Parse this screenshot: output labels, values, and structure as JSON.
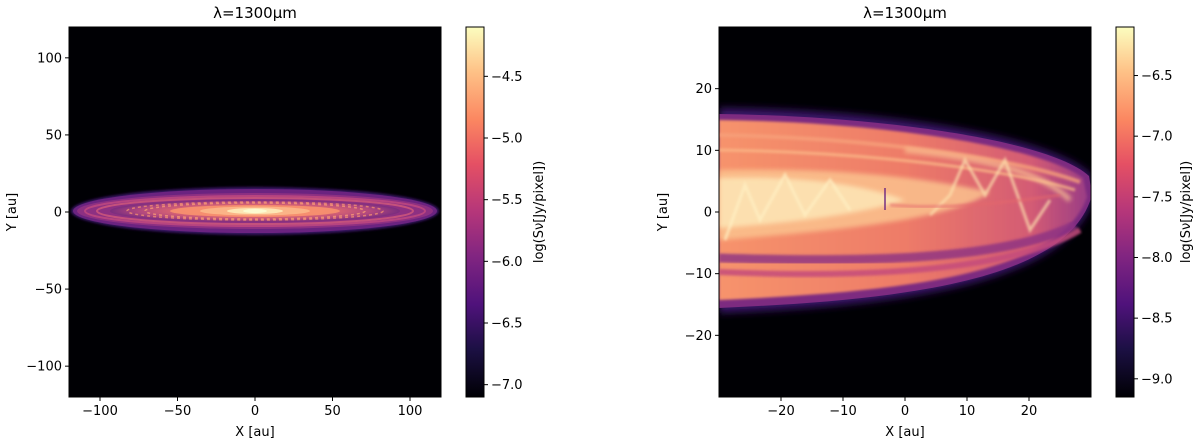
{
  "chart_data": [
    {
      "type": "heatmap",
      "title": "λ=1300μm",
      "xlabel": "X [au]",
      "ylabel": "Y [au]",
      "xlim": [
        -120,
        120
      ],
      "ylim": [
        -120,
        120
      ],
      "xticks": [
        -100,
        -50,
        0,
        50,
        100
      ],
      "xtick_labels": [
        "−100",
        "−50",
        "0",
        "50",
        "100"
      ],
      "yticks": [
        100,
        50,
        0,
        -50,
        -100
      ],
      "ytick_labels": [
        "100",
        "50",
        "0",
        "−50",
        "−100"
      ],
      "colorbar": {
        "label": "log(Sν[Jy/pixel])",
        "range": [
          -7.1,
          -4.1
        ],
        "ticks": [
          -4.5,
          -5.0,
          -5.5,
          -6.0,
          -6.5,
          -7.0
        ],
        "tick_labels": [
          "−4.5",
          "−5.0",
          "−5.5",
          "−6.0",
          "−6.5",
          "−7.0"
        ],
        "colormap": "magma"
      },
      "image": "edge-on disk emission, outer radius ~118 au, half-thickness ~15 au, brightest at center, ring substructure"
    },
    {
      "type": "heatmap",
      "title": "λ=1300μm",
      "xlabel": "X [au]",
      "ylabel": "Y [au]",
      "xlim": [
        -30,
        30
      ],
      "ylim": [
        -30,
        30
      ],
      "xticks": [
        -20,
        -10,
        0,
        10,
        20
      ],
      "xtick_labels": [
        "−20",
        "−10",
        "0",
        "10",
        "20"
      ],
      "yticks": [
        20,
        10,
        0,
        -10,
        -20
      ],
      "ytick_labels": [
        "20",
        "10",
        "0",
        "−10",
        "−20"
      ],
      "colorbar": {
        "label": "log(Sν[Jy/pixel])",
        "range": [
          -9.15,
          -6.1
        ],
        "ticks": [
          -6.5,
          -7.0,
          -7.5,
          -8.0,
          -8.5,
          -9.0
        ],
        "tick_labels": [
          "−6.5",
          "−7.0",
          "−7.5",
          "−8.0",
          "−8.5",
          "−9.0"
        ],
        "colormap": "magma"
      },
      "image": "zoom on the disk edge near x=30 au, layered arcs spanning y from -16 to 16 au"
    }
  ]
}
